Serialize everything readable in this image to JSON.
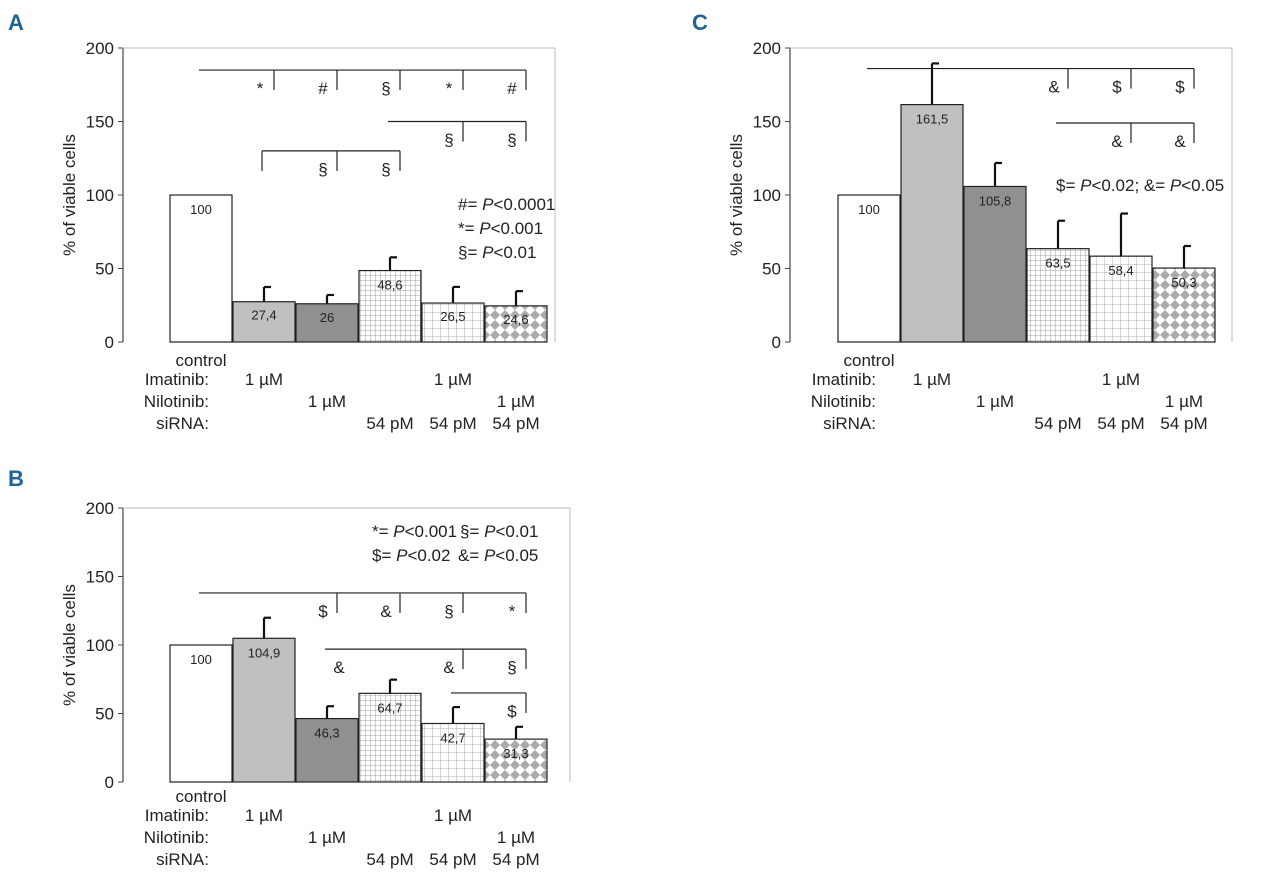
{
  "figure": {
    "panels": [
      "A",
      "B",
      "C"
    ]
  },
  "colors": {
    "axis": "#444444",
    "bar_outline": "#222222",
    "panel_label": "#1e6496",
    "light_gray": "#c0c0c0",
    "dark_gray": "#909090",
    "grid_fill": "#888888",
    "diamond_fill": "#aaaaaa"
  },
  "chart_data": [
    {
      "panel": "A",
      "type": "bar",
      "ylabel": "% of viable cells",
      "ylim": [
        0,
        200
      ],
      "yticks": [
        "0",
        "50",
        "100",
        "150",
        "200"
      ],
      "categories": [
        "control",
        "Imatinib 1 µM",
        "Nilotinib 1 µM",
        "siRNA 54 pM",
        "Imatinib 1 µM + siRNA 54 pM",
        "Nilotinib 1 µM + siRNA 54 pM"
      ],
      "values": [
        100,
        27.4,
        26,
        48.6,
        26.5,
        24.6
      ],
      "value_labels": [
        "100",
        "27,4",
        "26",
        "48,6",
        "26,5",
        "24,6"
      ],
      "errors": [
        0,
        10,
        6,
        9,
        11,
        10
      ],
      "patterns": [
        "white",
        "light-gray",
        "dark-gray",
        "grid",
        "wide-grid",
        "diamond"
      ],
      "row_labels": [
        "Imatinib:",
        "Nilotinib:",
        "siRNA:"
      ],
      "first_label": "control",
      "imatinib": [
        "",
        "1 µM",
        "",
        "",
        "1 µM",
        ""
      ],
      "nilotinib": [
        "",
        "",
        "1 µM",
        "",
        "",
        "1 µM"
      ],
      "sirna": [
        "",
        "",
        "",
        "54 pM",
        "54 pM",
        "54 pM"
      ],
      "significance": [
        {
          "from": 0,
          "to": [
            1,
            2,
            3,
            4,
            5
          ],
          "level": 185,
          "symbols": [
            "*",
            "#",
            "§",
            "*",
            "#"
          ]
        },
        {
          "from": 3,
          "to": [
            4,
            5
          ],
          "level": 150,
          "symbols": [
            "§",
            "§"
          ]
        },
        {
          "from": 1,
          "to": [
            2,
            3
          ],
          "level": 130,
          "symbols": [
            "§",
            "§"
          ],
          "down": true
        }
      ],
      "legend": [
        {
          "sym": "#= ",
          "p": "P",
          "val": "<0.0001"
        },
        {
          "sym": "*= ",
          "p": "P",
          "val": "<0.001"
        },
        {
          "sym": "§= ",
          "p": "P",
          "val": "<0.01"
        }
      ]
    },
    {
      "panel": "B",
      "type": "bar",
      "ylabel": "% of viable cells",
      "ylim": [
        0,
        200
      ],
      "yticks": [
        "0",
        "50",
        "100",
        "150",
        "200"
      ],
      "categories": [
        "control",
        "Imatinib 1 µM",
        "Nilotinib 1 µM",
        "siRNA 54 pM",
        "Imatinib 1 µM + siRNA 54 pM",
        "Nilotinib 1 µM + siRNA 54 pM"
      ],
      "values": [
        100,
        104.9,
        46.3,
        64.7,
        42.7,
        31.3
      ],
      "value_labels": [
        "100",
        "104,9",
        "46,3",
        "64,7",
        "42,7",
        "31,3"
      ],
      "errors": [
        0,
        15,
        9,
        10,
        12,
        9
      ],
      "patterns": [
        "white",
        "light-gray",
        "dark-gray",
        "grid",
        "wide-grid",
        "diamond"
      ],
      "row_labels": [
        "Imatinib:",
        "Nilotinib:",
        "siRNA:"
      ],
      "first_label": "control",
      "imatinib": [
        "",
        "1 µM",
        "",
        "",
        "1 µM",
        ""
      ],
      "nilotinib": [
        "",
        "",
        "1 µM",
        "",
        "",
        "1 µM"
      ],
      "sirna": [
        "",
        "",
        "",
        "54 pM",
        "54 pM",
        "54 pM"
      ],
      "significance": [
        {
          "from": 0,
          "to": [
            2,
            3,
            4,
            5
          ],
          "level": 138,
          "symbols": [
            "$",
            "&",
            "§",
            "*"
          ]
        },
        {
          "from": 2,
          "to": [
            4,
            5
          ],
          "level": 97,
          "symbols": [
            "&",
            "&",
            "§"
          ],
          "extra_sym_at": 2
        },
        {
          "from": 4,
          "to": [
            5
          ],
          "level": 65,
          "symbols": [
            "$"
          ]
        }
      ],
      "legend": [
        {
          "sym": "*= ",
          "p": "P",
          "val": "<0.001"
        },
        {
          "sym": "§= ",
          "p": "P",
          "val": "<0.01"
        },
        {
          "sym": "$= ",
          "p": "P",
          "val": "<0.02"
        },
        {
          "sym": "&= ",
          "p": "P",
          "val": "<0.05"
        }
      ]
    },
    {
      "panel": "C",
      "type": "bar",
      "ylabel": "% of viable cells",
      "ylim": [
        0,
        200
      ],
      "yticks": [
        "0",
        "50",
        "100",
        "150",
        "200"
      ],
      "categories": [
        "control",
        "Imatinib 1 µM",
        "Nilotinib 1 µM",
        "siRNA 54 pM",
        "Imatinib 1 µM + siRNA 54 pM",
        "Nilotinib 1 µM + siRNA 54 pM"
      ],
      "values": [
        100,
        161.5,
        105.8,
        63.5,
        58.4,
        50.3
      ],
      "value_labels": [
        "100",
        "161,5",
        "105,8",
        "63,5",
        "58,4",
        "50,3"
      ],
      "errors": [
        0,
        28,
        16,
        19,
        29,
        15
      ],
      "patterns": [
        "white",
        "light-gray",
        "dark-gray",
        "grid",
        "wide-grid",
        "diamond"
      ],
      "row_labels": [
        "Imatinib:",
        "Nilotinib:",
        "siRNA:"
      ],
      "first_label": "control",
      "imatinib": [
        "",
        "1 µM",
        "",
        "",
        "1 µM",
        ""
      ],
      "nilotinib": [
        "",
        "",
        "1 µM",
        "",
        "",
        "1 µM"
      ],
      "sirna": [
        "",
        "",
        "",
        "54 pM",
        "54 pM",
        "54 pM"
      ],
      "significance": [
        {
          "from": 0,
          "to": [
            3,
            4,
            5
          ],
          "level": 186,
          "symbols": [
            "&",
            "$",
            "$"
          ]
        },
        {
          "from": 3,
          "to": [
            4,
            5
          ],
          "level": 149,
          "symbols": [
            "&",
            "&"
          ]
        }
      ],
      "legend": [
        {
          "sym": "$= ",
          "p": "P",
          "val": "<0.02; &= ",
          "p2": "P",
          "val2": "<0.05"
        }
      ]
    }
  ]
}
